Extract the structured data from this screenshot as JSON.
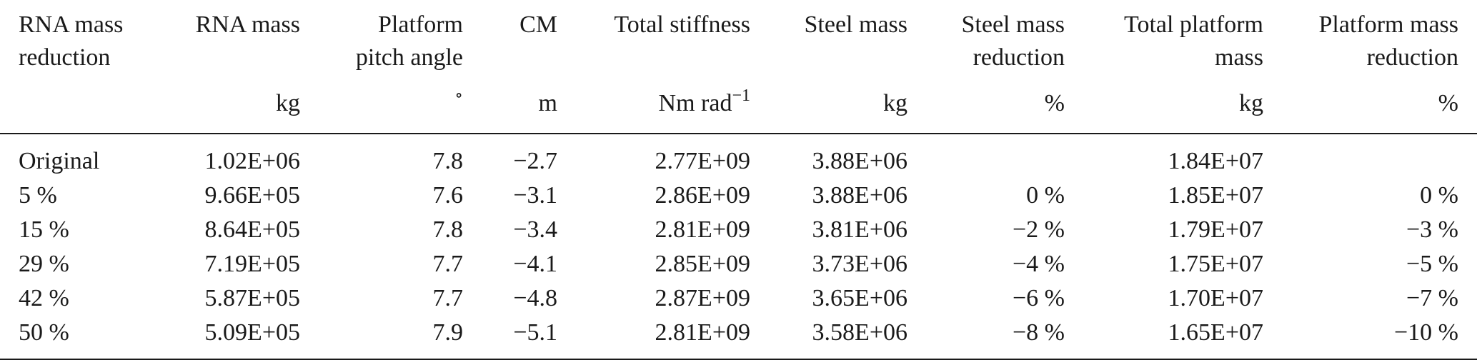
{
  "table": {
    "headers": [
      {
        "label": "RNA mass\nreduction",
        "unit": ""
      },
      {
        "label": "RNA mass",
        "unit": "kg"
      },
      {
        "label": "Platform\npitch angle",
        "unit": "∘"
      },
      {
        "label": "CM",
        "unit": "m"
      },
      {
        "label": "Total stiffness",
        "unit": "Nm rad",
        "unit_sup": "−1"
      },
      {
        "label": "Steel mass",
        "unit": "kg"
      },
      {
        "label": "Steel mass\nreduction",
        "unit": "%"
      },
      {
        "label": "Total platform\nmass",
        "unit": "kg"
      },
      {
        "label": "Platform mass\nreduction",
        "unit": "%"
      }
    ],
    "rows": [
      [
        "Original",
        "1.02E+06",
        "7.8",
        "−2.7",
        "2.77E+09",
        "3.88E+06",
        "",
        "1.84E+07",
        ""
      ],
      [
        "5 %",
        "9.66E+05",
        "7.6",
        "−3.1",
        "2.86E+09",
        "3.88E+06",
        "0 %",
        "1.85E+07",
        "0 %"
      ],
      [
        "15 %",
        "8.64E+05",
        "7.8",
        "−3.4",
        "2.81E+09",
        "3.81E+06",
        "−2 %",
        "1.79E+07",
        "−3 %"
      ],
      [
        "29 %",
        "7.19E+05",
        "7.7",
        "−4.1",
        "2.85E+09",
        "3.73E+06",
        "−4 %",
        "1.75E+07",
        "−5 %"
      ],
      [
        "42 %",
        "5.87E+05",
        "7.7",
        "−4.8",
        "2.87E+09",
        "3.65E+06",
        "−6 %",
        "1.70E+07",
        "−7 %"
      ],
      [
        "50 %",
        "5.09E+05",
        "7.9",
        "−5.1",
        "2.81E+09",
        "3.58E+06",
        "−8 %",
        "1.65E+07",
        "−10 %"
      ]
    ]
  }
}
